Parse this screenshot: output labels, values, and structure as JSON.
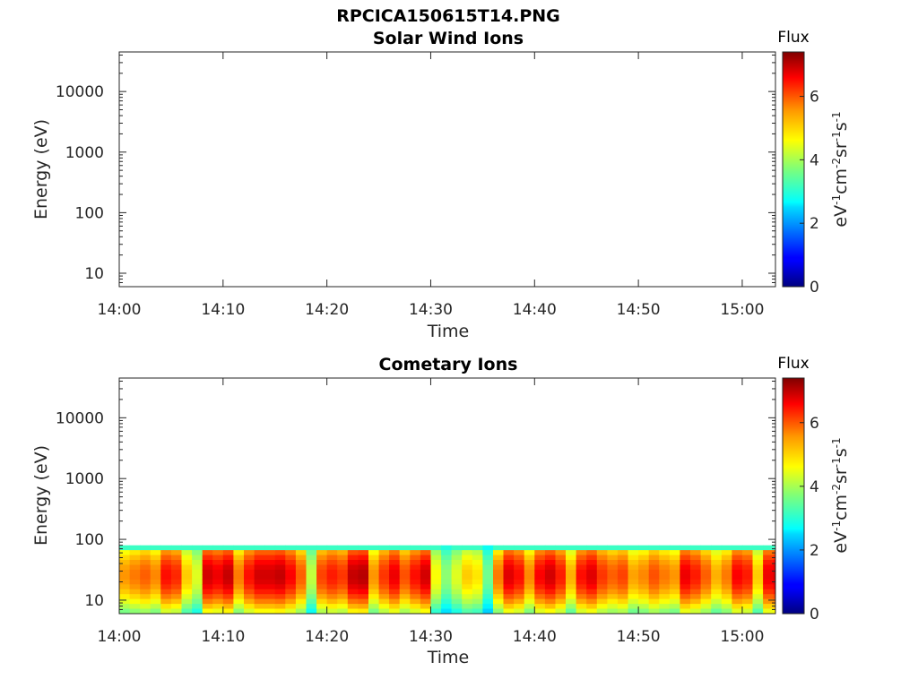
{
  "figure": {
    "title": "RPCICA150615T14.PNG"
  },
  "chart_data": [
    {
      "type": "heatmap",
      "title": "Solar Wind Ions",
      "xlabel": "Time",
      "ylabel": "Energy (eV)",
      "y_scale": "log",
      "ylim": [
        6,
        45000
      ],
      "x_ticks": [
        "14:00",
        "14:10",
        "14:20",
        "14:30",
        "14:40",
        "14:50",
        "15:00"
      ],
      "y_ticks": [
        "10",
        "100",
        "1000",
        "10000"
      ],
      "colorbar": {
        "title": "Flux",
        "label": "eV-1cm-2sr-1s-1",
        "range": [
          0,
          7.4
        ],
        "ticks": [
          "0",
          "2",
          "4",
          "6"
        ],
        "colormap": "jet"
      },
      "data": []
    },
    {
      "type": "heatmap",
      "title": "Cometary Ions",
      "xlabel": "Time",
      "ylabel": "Energy (eV)",
      "y_scale": "log",
      "ylim": [
        6,
        45000
      ],
      "x_ticks": [
        "14:00",
        "14:10",
        "14:20",
        "14:30",
        "14:40",
        "14:50",
        "15:00"
      ],
      "y_ticks": [
        "10",
        "100",
        "1000",
        "10000"
      ],
      "colorbar": {
        "title": "Flux",
        "label": "eV-1cm-2sr-1s-1",
        "range": [
          0,
          7.4
        ],
        "ticks": [
          "0",
          "2",
          "4",
          "6"
        ],
        "colormap": "jet"
      },
      "energy_max_ev": 80,
      "flux_by_time": [
        {
          "t": "14:00",
          "flux": 5.4
        },
        {
          "t": "14:01",
          "flux": 5.6
        },
        {
          "t": "14:02",
          "flux": 5.8
        },
        {
          "t": "14:03",
          "flux": 5.5
        },
        {
          "t": "14:04",
          "flux": 6.4
        },
        {
          "t": "14:05",
          "flux": 6.2
        },
        {
          "t": "14:06",
          "flux": 5.0
        },
        {
          "t": "14:07",
          "flux": 4.4
        },
        {
          "t": "14:08",
          "flux": 6.8
        },
        {
          "t": "14:09",
          "flux": 6.6
        },
        {
          "t": "14:10",
          "flux": 6.9
        },
        {
          "t": "14:11",
          "flux": 5.6
        },
        {
          "t": "14:12",
          "flux": 6.4
        },
        {
          "t": "14:13",
          "flux": 6.8
        },
        {
          "t": "14:14",
          "flux": 6.8
        },
        {
          "t": "14:15",
          "flux": 6.9
        },
        {
          "t": "14:16",
          "flux": 6.5
        },
        {
          "t": "14:17",
          "flux": 5.8
        },
        {
          "t": "14:18",
          "flux": 4.2
        },
        {
          "t": "14:19",
          "flux": 6.0
        },
        {
          "t": "14:20",
          "flux": 6.3
        },
        {
          "t": "14:21",
          "flux": 6.1
        },
        {
          "t": "14:22",
          "flux": 6.9
        },
        {
          "t": "14:23",
          "flux": 7.0
        },
        {
          "t": "14:24",
          "flux": 5.4
        },
        {
          "t": "14:25",
          "flux": 6.1
        },
        {
          "t": "14:26",
          "flux": 6.6
        },
        {
          "t": "14:27",
          "flux": 5.9
        },
        {
          "t": "14:28",
          "flux": 6.4
        },
        {
          "t": "14:29",
          "flux": 6.8
        },
        {
          "t": "14:30",
          "flux": 4.6
        },
        {
          "t": "14:31",
          "flux": 3.8
        },
        {
          "t": "14:32",
          "flux": 4.4
        },
        {
          "t": "14:33",
          "flux": 5.0
        },
        {
          "t": "14:34",
          "flux": 4.8
        },
        {
          "t": "14:35",
          "flux": 3.6
        },
        {
          "t": "14:36",
          "flux": 5.6
        },
        {
          "t": "14:37",
          "flux": 6.7
        },
        {
          "t": "14:38",
          "flux": 6.4
        },
        {
          "t": "14:39",
          "flux": 5.5
        },
        {
          "t": "14:40",
          "flux": 6.5
        },
        {
          "t": "14:41",
          "flux": 6.8
        },
        {
          "t": "14:42",
          "flux": 6.3
        },
        {
          "t": "14:43",
          "flux": 5.2
        },
        {
          "t": "14:44",
          "flux": 6.4
        },
        {
          "t": "14:45",
          "flux": 6.7
        },
        {
          "t": "14:46",
          "flux": 6.1
        },
        {
          "t": "14:47",
          "flux": 5.8
        },
        {
          "t": "14:48",
          "flux": 6.0
        },
        {
          "t": "14:49",
          "flux": 5.3
        },
        {
          "t": "14:50",
          "flux": 5.5
        },
        {
          "t": "14:51",
          "flux": 5.9
        },
        {
          "t": "14:52",
          "flux": 5.6
        },
        {
          "t": "14:53",
          "flux": 5.4
        },
        {
          "t": "14:54",
          "flux": 6.6
        },
        {
          "t": "14:55",
          "flux": 6.3
        },
        {
          "t": "14:56",
          "flux": 5.8
        },
        {
          "t": "14:57",
          "flux": 5.2
        },
        {
          "t": "14:58",
          "flux": 5.6
        },
        {
          "t": "14:59",
          "flux": 6.5
        },
        {
          "t": "15:00",
          "flux": 6.3
        },
        {
          "t": "15:01",
          "flux": 5.0
        },
        {
          "t": "15:02",
          "flux": 6.6
        },
        {
          "t": "15:03",
          "flux": 6.8
        }
      ]
    }
  ]
}
